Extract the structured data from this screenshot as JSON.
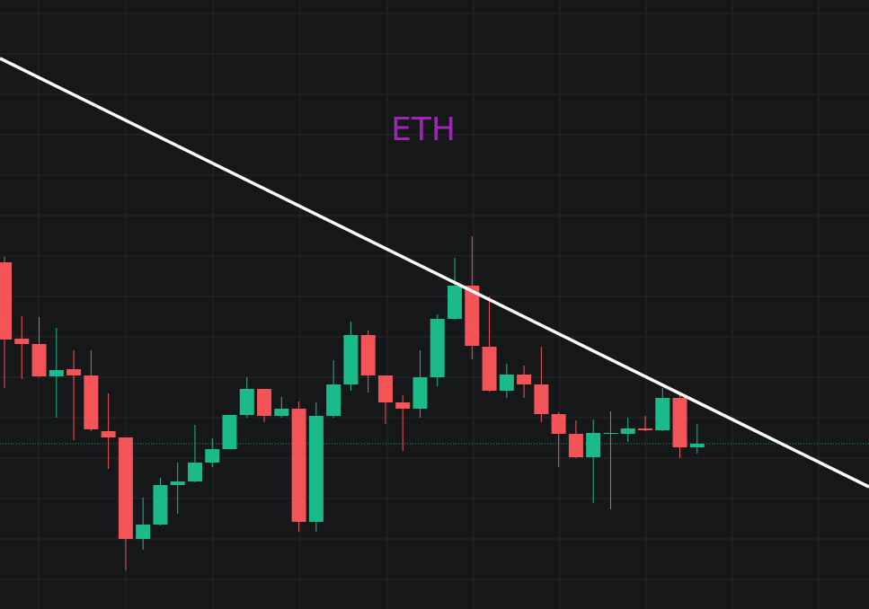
{
  "chart_data": {
    "type": "candlestick",
    "title": "ETH",
    "title_color": "#9c27b0",
    "up_color": "#1cb98a",
    "down_color": "#f25458",
    "ylim": [
      0,
      678
    ],
    "open": [
      386,
      301,
      295,
      259,
      267,
      260,
      198,
      191,
      78,
      94,
      138,
      142,
      163,
      178,
      216,
      245,
      215,
      223,
      97,
      215,
      250,
      305,
      260,
      230,
      223,
      258,
      323,
      360,
      292,
      243,
      261,
      250,
      217,
      195,
      169,
      195,
      195,
      201,
      199,
      235,
      180
    ],
    "high": [
      392,
      326,
      325,
      313,
      288,
      288,
      240,
      191,
      124,
      146,
      163,
      205,
      190,
      216,
      258,
      245,
      236,
      231,
      230,
      277,
      320,
      310,
      260,
      238,
      288,
      328,
      391,
      415,
      348,
      273,
      271,
      292,
      219,
      210,
      211,
      220,
      213,
      215,
      246,
      242,
      206
    ],
    "low": [
      246,
      256,
      258,
      213,
      188,
      198,
      156,
      43,
      66,
      93,
      106,
      141,
      158,
      178,
      213,
      208,
      213,
      86,
      86,
      213,
      243,
      241,
      206,
      176,
      213,
      248,
      322,
      278,
      242,
      235,
      235,
      208,
      158,
      168,
      118,
      111,
      186,
      198,
      198,
      168,
      173
    ],
    "close": [
      300,
      295,
      259,
      266,
      260,
      200,
      191,
      78,
      94,
      138,
      142,
      163,
      178,
      216,
      245,
      215,
      223,
      97,
      215,
      250,
      305,
      260,
      230,
      223,
      258,
      323,
      360,
      293,
      243,
      261,
      250,
      217,
      195,
      169,
      196,
      196,
      201,
      199,
      235,
      180,
      184
    ]
  }
}
